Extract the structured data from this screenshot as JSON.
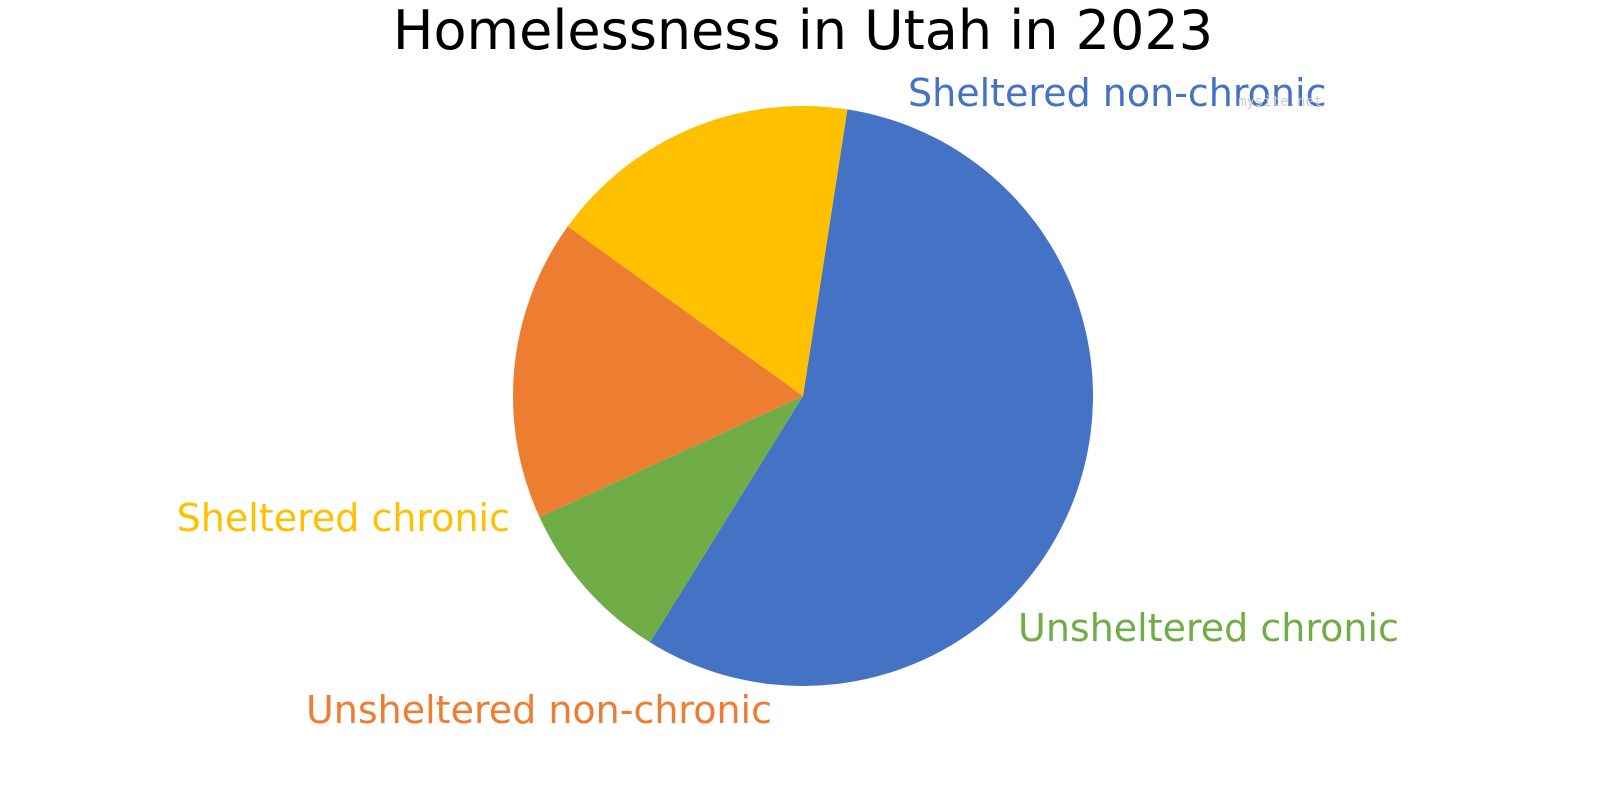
{
  "chart_data": {
    "type": "pie",
    "title": "Homelessness in Utah in 2023",
    "start_angle_deg": 81.2,
    "direction": "clockwise",
    "slices": [
      {
        "label": "Sheltered non-chronic",
        "value": 56.4,
        "color": "#4472C4"
      },
      {
        "label": "Unsheltered chronic",
        "value": 9.3,
        "color": "#70AD47"
      },
      {
        "label": "Unsheltered non-chronic",
        "value": 16.8,
        "color": "#ED7D31"
      },
      {
        "label": "Sheltered chronic",
        "value": 17.5,
        "color": "#FFC000"
      }
    ],
    "legend": "none"
  },
  "watermark": "mysite.net"
}
